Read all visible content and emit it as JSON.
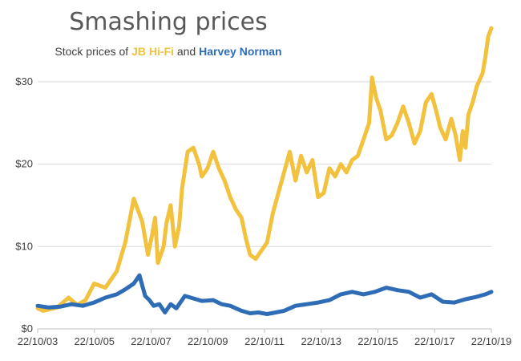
{
  "chart_data": {
    "type": "line",
    "title": "Smashing prices",
    "subtitle": {
      "prefix": "Stock prices of ",
      "series_a": "JB Hi-Fi",
      "joiner": " and ",
      "series_b": "Harvey Norman"
    },
    "xlabel": "",
    "ylabel": "",
    "x_ticks": [
      "22/10/03",
      "22/10/05",
      "22/10/07",
      "22/10/09",
      "22/10/11",
      "22/10/13",
      "22/10/15",
      "22/10/17",
      "22/10/19"
    ],
    "y_ticks": [
      {
        "value": 0,
        "label": "$0"
      },
      {
        "value": 10,
        "label": "$10"
      },
      {
        "value": 20,
        "label": "$20"
      },
      {
        "value": 30,
        "label": "$30"
      }
    ],
    "ylim": [
      0,
      37
    ],
    "xlim": [
      2003.81,
      2019.81
    ],
    "grid": true,
    "legend": "none",
    "series": [
      {
        "name": "JB Hi-Fi",
        "color": "#F2C13D",
        "x": [
          2003.81,
          2004.0,
          2004.5,
          2004.9,
          2005.2,
          2005.5,
          2005.8,
          2006.2,
          2006.6,
          2006.9,
          2007.2,
          2007.5,
          2007.7,
          2007.85,
          2007.95,
          2008.05,
          2008.25,
          2008.35,
          2008.5,
          2008.65,
          2008.8,
          2008.9,
          2009.1,
          2009.3,
          2009.5,
          2009.6,
          2009.8,
          2010.0,
          2010.2,
          2010.4,
          2010.6,
          2010.8,
          2011.0,
          2011.15,
          2011.3,
          2011.5,
          2011.7,
          2011.9,
          2012.1,
          2012.3,
          2012.5,
          2012.7,
          2012.9,
          2013.1,
          2013.3,
          2013.5,
          2013.7,
          2013.9,
          2014.1,
          2014.3,
          2014.5,
          2014.7,
          2014.9,
          2015.1,
          2015.3,
          2015.5,
          2015.6,
          2015.75,
          2015.9,
          2016.1,
          2016.3,
          2016.5,
          2016.7,
          2016.9,
          2017.1,
          2017.3,
          2017.5,
          2017.7,
          2017.9,
          2018.0,
          2018.2,
          2018.4,
          2018.55,
          2018.7,
          2018.8,
          2018.9,
          2019.0,
          2019.15,
          2019.3,
          2019.5,
          2019.6,
          2019.7,
          2019.81
        ],
        "values": [
          2.5,
          2.2,
          2.6,
          3.8,
          2.9,
          3.5,
          5.5,
          5.0,
          7.0,
          10.5,
          15.8,
          13.0,
          9.0,
          11.5,
          13.5,
          8.0,
          10.0,
          12.8,
          15.0,
          10.0,
          12.5,
          17.0,
          21.5,
          22.0,
          20.0,
          18.5,
          19.5,
          21.5,
          19.5,
          18.0,
          16.0,
          14.5,
          13.5,
          11.0,
          9.0,
          8.5,
          9.5,
          10.5,
          14.0,
          16.5,
          19.0,
          21.5,
          18.0,
          21.0,
          19.0,
          20.5,
          16.0,
          16.5,
          19.5,
          18.5,
          20.0,
          19.0,
          20.5,
          21.0,
          23.0,
          25.0,
          30.5,
          28.0,
          26.5,
          23.0,
          23.5,
          25.0,
          27.0,
          25.0,
          22.5,
          24.0,
          27.5,
          28.5,
          26.0,
          24.5,
          23.0,
          25.5,
          23.5,
          20.5,
          24.0,
          22.0,
          26.0,
          27.5,
          29.5,
          31.0,
          33.0,
          35.5,
          36.5
        ]
      },
      {
        "name": "Harvey Norman",
        "color": "#2E6DB6",
        "x": [
          2003.81,
          2004.2,
          2004.6,
          2005.0,
          2005.4,
          2005.8,
          2006.2,
          2006.6,
          2006.9,
          2007.2,
          2007.4,
          2007.6,
          2007.75,
          2007.9,
          2008.1,
          2008.3,
          2008.5,
          2008.7,
          2009.0,
          2009.3,
          2009.6,
          2010.0,
          2010.3,
          2010.6,
          2011.0,
          2011.3,
          2011.6,
          2011.9,
          2012.2,
          2012.5,
          2012.9,
          2013.3,
          2013.7,
          2014.1,
          2014.5,
          2014.9,
          2015.3,
          2015.7,
          2016.1,
          2016.5,
          2016.9,
          2017.3,
          2017.7,
          2018.1,
          2018.5,
          2018.9,
          2019.3,
          2019.6,
          2019.81
        ],
        "values": [
          2.8,
          2.6,
          2.7,
          3.0,
          2.8,
          3.2,
          3.8,
          4.2,
          4.8,
          5.5,
          6.5,
          4.0,
          3.5,
          2.8,
          3.0,
          2.0,
          3.0,
          2.5,
          4.0,
          3.7,
          3.4,
          3.5,
          3.0,
          2.8,
          2.2,
          1.9,
          2.0,
          1.8,
          2.0,
          2.2,
          2.8,
          3.0,
          3.2,
          3.5,
          4.2,
          4.5,
          4.2,
          4.5,
          5.0,
          4.7,
          4.5,
          3.8,
          4.2,
          3.3,
          3.2,
          3.6,
          3.9,
          4.2,
          4.5
        ]
      }
    ]
  }
}
